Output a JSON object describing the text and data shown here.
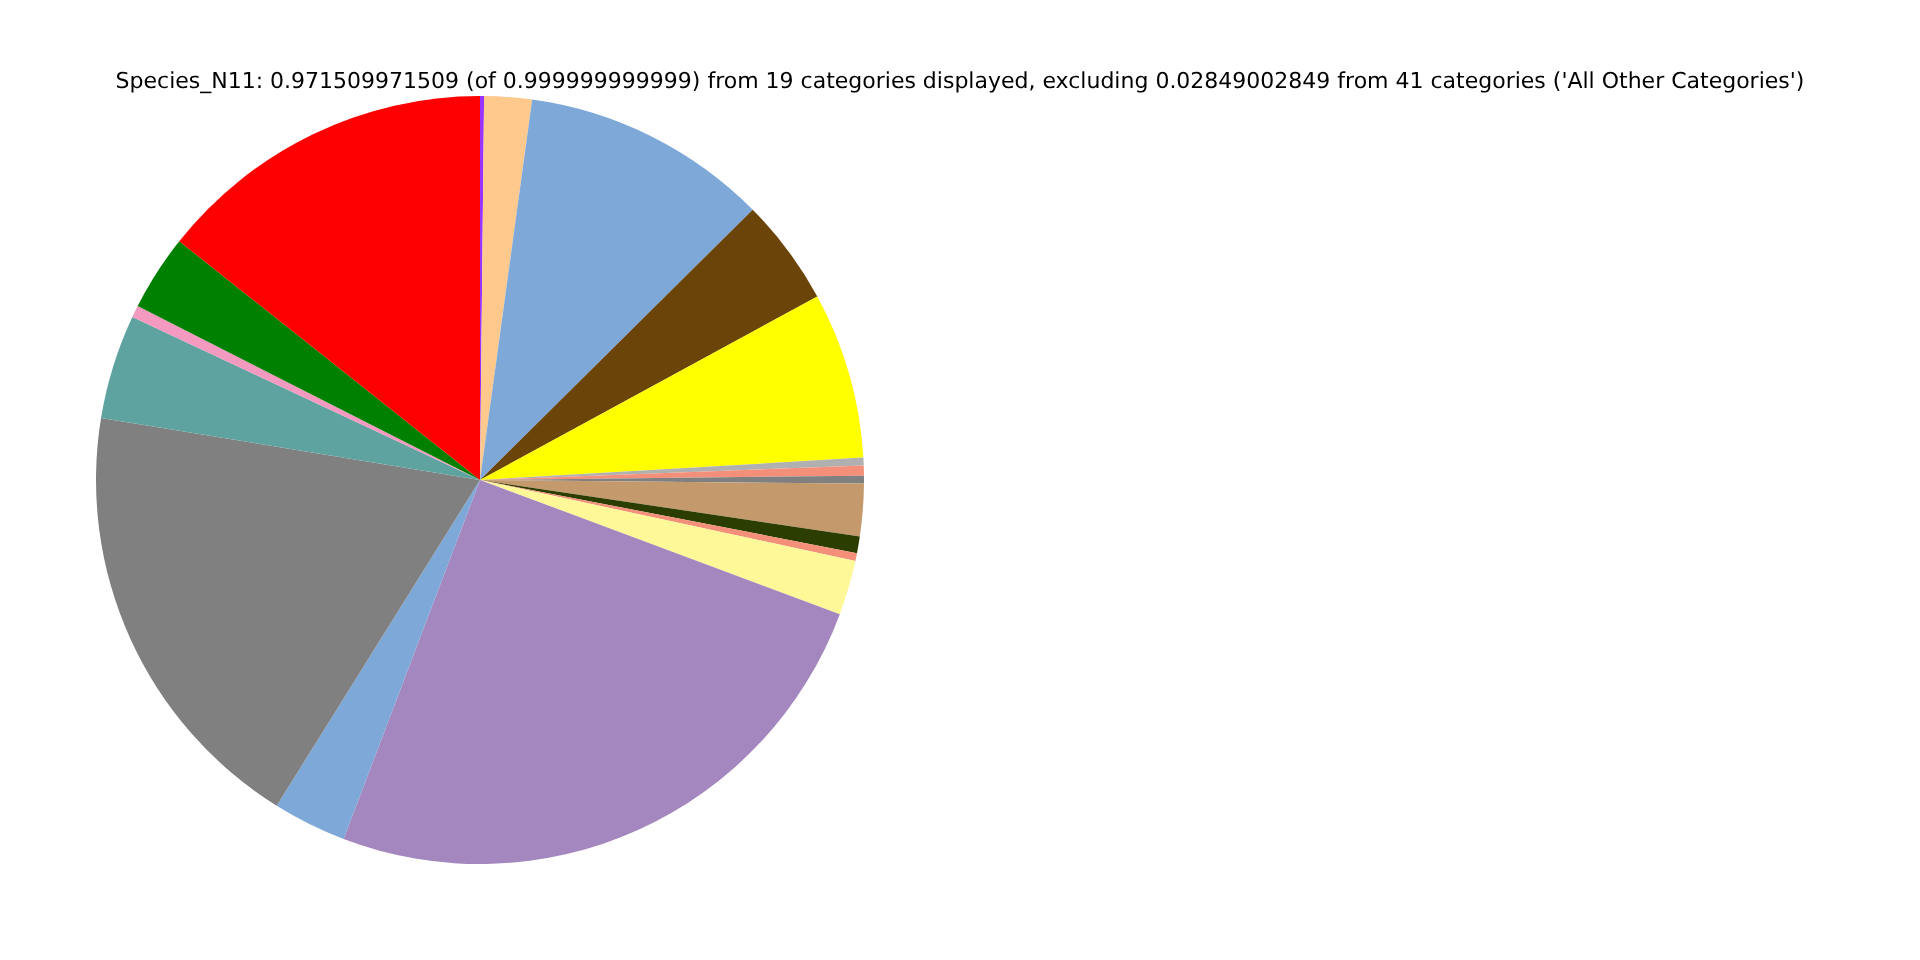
{
  "chart_data": {
    "type": "pie",
    "title": "Species_N11: 0.971509971509 (of 0.999999999999) from 19 categories displayed, excluding 0.02849002849 from 41 categories ('All Other Categories')",
    "categories": [
      null,
      null,
      null,
      null,
      null,
      null,
      null,
      null,
      null,
      null,
      null,
      null,
      null,
      null,
      null,
      null,
      null,
      null,
      null
    ],
    "values": [
      0.17,
      2,
      10.4,
      4.5,
      7,
      0.33,
      0.42,
      0.33,
      2.2,
      0.7,
      0.33,
      2.3,
      25.1,
      3.1,
      18.7,
      4.4,
      0.5,
      3.2,
      14.32
    ],
    "colors": [
      "#9933ff",
      "#ffc88c",
      "#7da8d8",
      "#6b4409",
      "#ffff00",
      "#b0b0b0",
      "#f4907a",
      "#808080",
      "#c49a6c",
      "#2b3d00",
      "#f4907a",
      "#fff899",
      "#a487bf",
      "#7da8d8",
      "#808080",
      "#5fa3a0",
      "#f49ac1",
      "#008000",
      "#ff0000"
    ],
    "legend": false
  }
}
